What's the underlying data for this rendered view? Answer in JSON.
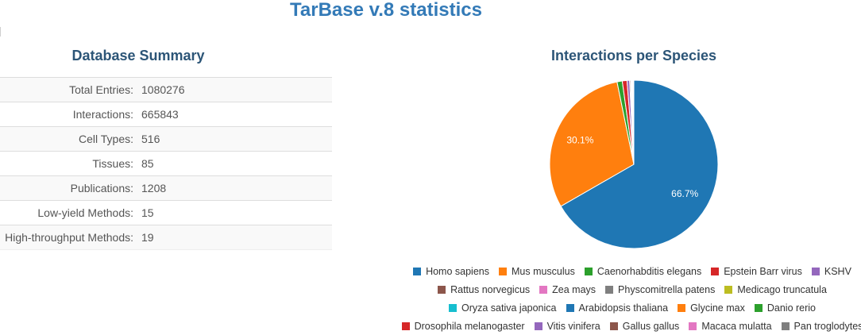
{
  "page": {
    "title": "TarBase v.8 statistics"
  },
  "summary": {
    "title": "Database Summary",
    "rows": [
      {
        "label": "Total Entries:",
        "value": "1080276"
      },
      {
        "label": "Interactions:",
        "value": "665843"
      },
      {
        "label": "Cell Types:",
        "value": "516"
      },
      {
        "label": "Tissues:",
        "value": "85"
      },
      {
        "label": "Publications:",
        "value": "1208"
      },
      {
        "label": "Low-yield Methods:",
        "value": "15"
      },
      {
        "label": "High-throughput Methods:",
        "value": "19"
      }
    ]
  },
  "chart_data": {
    "type": "pie",
    "title": "Interactions per Species",
    "slices": [
      {
        "name": "Homo sapiens",
        "value": 66.7,
        "label": "66.7%",
        "color": "#1f77b4"
      },
      {
        "name": "Mus musculus",
        "value": 30.1,
        "label": "30.1%",
        "color": "#ff7f0e"
      },
      {
        "name": "Caenorhabditis elegans",
        "value": 1.0,
        "color": "#2ca02c"
      },
      {
        "name": "Epstein Barr virus",
        "value": 0.9,
        "color": "#d62728"
      },
      {
        "name": "KSHV",
        "value": 0.5,
        "color": "#9467bd"
      },
      {
        "name": "Rattus norvegicus",
        "value": 0.2,
        "color": "#8c564b"
      },
      {
        "name": "Zea mays",
        "value": 0.15,
        "color": "#e377c2"
      },
      {
        "name": "Physcomitrella patens",
        "value": 0.1,
        "color": "#7f7f7f"
      },
      {
        "name": "Medicago truncatula",
        "value": 0.08,
        "color": "#bcbd22"
      },
      {
        "name": "Oryza sativa japonica",
        "value": 0.06,
        "color": "#17becf"
      },
      {
        "name": "Arabidopsis thaliana",
        "value": 0.05,
        "color": "#1f77b4"
      },
      {
        "name": "Glycine max",
        "value": 0.04,
        "color": "#ff7f0e"
      },
      {
        "name": "Danio rerio",
        "value": 0.03,
        "color": "#2ca02c"
      },
      {
        "name": "Drosophila melanogaster",
        "value": 0.03,
        "color": "#d62728"
      },
      {
        "name": "Vitis vinifera",
        "value": 0.02,
        "color": "#9467bd"
      },
      {
        "name": "Gallus gallus",
        "value": 0.02,
        "color": "#8c564b"
      },
      {
        "name": "Macaca mulatta",
        "value": 0.01,
        "color": "#e377c2"
      },
      {
        "name": "Pan troglodytes",
        "value": 0.01,
        "color": "#7f7f7f"
      }
    ],
    "legend_rows": [
      [
        "Homo sapiens",
        "Mus musculus",
        "Caenorhabditis elegans",
        "Epstein Barr virus",
        "KSHV"
      ],
      [
        "Rattus norvegicus",
        "Zea mays",
        "Physcomitrella patens",
        "Medicago truncatula"
      ],
      [
        "Oryza sativa japonica",
        "Arabidopsis thaliana",
        "Glycine max",
        "Danio rerio"
      ],
      [
        "Drosophila melanogaster",
        "Vitis vinifera",
        "Gallus gallus",
        "Macaca mulatta",
        "Pan troglodytes"
      ]
    ],
    "legend_position": "bottom"
  }
}
